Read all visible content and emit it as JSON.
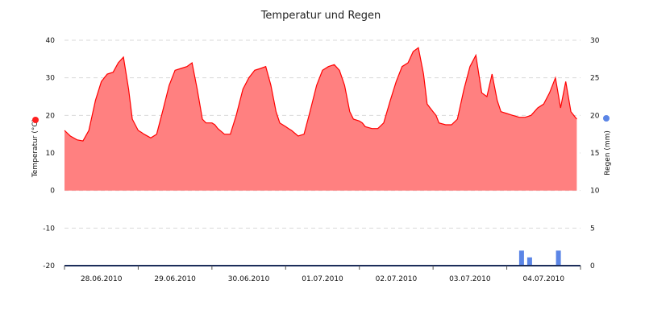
{
  "chart_data": {
    "type": "area",
    "title": "Temperatur und Regen",
    "grid": true,
    "x_labels": [
      "28.06.2010",
      "29.06.2010",
      "30.06.2010",
      "01.07.2010",
      "02.07.2010",
      "03.07.2010",
      "04.07.2010"
    ],
    "y_left": {
      "label": "Temperatur (°C)",
      "range": [
        -20,
        40
      ],
      "ticks": [
        -20,
        -10,
        0,
        10,
        20,
        30,
        40
      ],
      "color": "#ff2020"
    },
    "y_right": {
      "label": "Regen (mm)",
      "range": [
        0,
        30
      ],
      "ticks": [
        0,
        5,
        10,
        15,
        20,
        25,
        30
      ],
      "color": "#5b85e6"
    },
    "series": [
      {
        "name": "Temperatur",
        "kind": "area",
        "color": "#ff0000",
        "fill": "#ff8080",
        "x": [
          0,
          0.08,
          0.17,
          0.25,
          0.33,
          0.42,
          0.5,
          0.58,
          0.66,
          0.73,
          0.8,
          0.87,
          0.92,
          1,
          1.04,
          1.08,
          1.17,
          1.25,
          1.33,
          1.42,
          1.5,
          1.58,
          1.66,
          1.73,
          1.8,
          1.87,
          1.92,
          2,
          2.04,
          2.08,
          2.17,
          2.25,
          2.33,
          2.42,
          2.5,
          2.58,
          2.66,
          2.73,
          2.8,
          2.87,
          2.92,
          3,
          3.04,
          3.08,
          3.17,
          3.25,
          3.33,
          3.42,
          3.5,
          3.58,
          3.66,
          3.73,
          3.8,
          3.87,
          3.92,
          4,
          4.04,
          4.08,
          4.17,
          4.25,
          4.33,
          4.42,
          4.5,
          4.58,
          4.66,
          4.73,
          4.8,
          4.87,
          4.92,
          5,
          5.04,
          5.08,
          5.17,
          5.25,
          5.33,
          5.42,
          5.5,
          5.58,
          5.66,
          5.73,
          5.8,
          5.87,
          5.92,
          6,
          6.08,
          6.17,
          6.25,
          6.33,
          6.42,
          6.5,
          6.58,
          6.66,
          6.73,
          6.8,
          6.87,
          6.95
        ],
        "values": [
          16,
          14.5,
          13.5,
          13.2,
          16,
          24,
          29,
          31,
          31.5,
          34,
          35.5,
          27,
          19,
          16,
          15.5,
          15,
          14,
          15,
          21,
          28,
          32,
          32.5,
          33,
          34,
          27,
          19,
          18,
          18,
          17.5,
          16.5,
          15,
          15,
          20,
          27,
          30,
          32,
          32.5,
          33,
          28,
          21,
          18,
          17,
          16.5,
          16,
          14.5,
          15,
          21,
          28,
          32,
          33,
          33.5,
          32,
          28,
          21,
          19,
          18.5,
          18,
          17,
          16.5,
          16.5,
          18,
          24,
          29,
          33,
          34,
          37,
          38,
          31,
          23,
          21,
          20,
          18,
          17.5,
          17.5,
          19,
          27,
          33,
          36,
          26,
          25,
          31,
          24,
          21,
          20.5,
          20,
          19.5,
          19.5,
          20,
          22,
          23,
          26,
          30,
          22,
          29,
          21,
          19
        ]
      },
      {
        "name": "Regen",
        "kind": "bar",
        "color": "#5b85e6",
        "x": [
          6.2,
          6.31,
          6.7
        ],
        "values": [
          2,
          1.1,
          2
        ]
      }
    ]
  }
}
